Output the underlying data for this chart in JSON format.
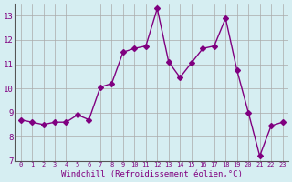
{
  "x": [
    0,
    1,
    2,
    3,
    4,
    5,
    6,
    7,
    8,
    9,
    10,
    11,
    12,
    13,
    14,
    15,
    16,
    17,
    18,
    19,
    20,
    21,
    22,
    23
  ],
  "y": [
    8.7,
    8.6,
    8.5,
    8.6,
    8.6,
    8.9,
    8.7,
    10.05,
    10.2,
    11.5,
    11.65,
    11.75,
    13.3,
    11.1,
    10.45,
    11.05,
    11.65,
    11.75,
    12.9,
    10.75,
    9.0,
    7.2,
    8.45,
    8.6
  ],
  "line_color": "#800080",
  "marker": "D",
  "marker_size": 3,
  "bg_color": "#d6eef2",
  "grid_color": "#aaaaaa",
  "xlabel": "Windchill (Refroidissement éolien,°C)",
  "xlabel_color": "#800080",
  "tick_color": "#800080",
  "xlim": [
    -0.5,
    23.5
  ],
  "ylim": [
    7.0,
    13.5
  ],
  "yticks": [
    7,
    8,
    9,
    10,
    11,
    12,
    13
  ],
  "xticks": [
    0,
    1,
    2,
    3,
    4,
    5,
    6,
    7,
    8,
    9,
    10,
    11,
    12,
    13,
    14,
    15,
    16,
    17,
    18,
    19,
    20,
    21,
    22,
    23
  ],
  "xtick_labels": [
    "0",
    "1",
    "2",
    "3",
    "4",
    "5",
    "6",
    "7",
    "8",
    "9",
    "10",
    "11",
    "12",
    "13",
    "14",
    "15",
    "16",
    "17",
    "18",
    "19",
    "20",
    "21",
    "22",
    "23"
  ]
}
